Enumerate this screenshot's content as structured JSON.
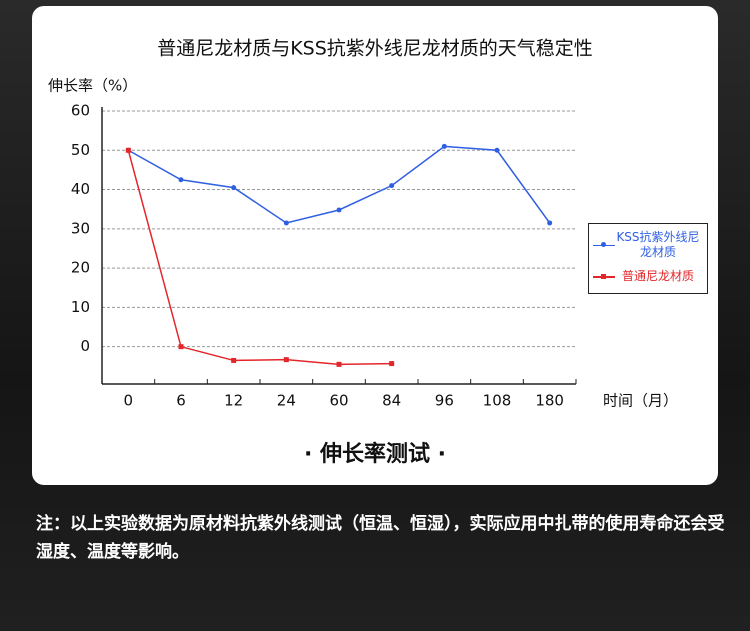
{
  "chart_data": {
    "type": "line",
    "title": "普通尼龙材质与KSS抗紫外线尼龙材质的天气稳定性",
    "y_label": "伸长率（%）",
    "x_label": "时间（月）",
    "caption": "· 伸长率测试 ·",
    "categories": [
      "0",
      "6",
      "12",
      "24",
      "60",
      "84",
      "96",
      "108",
      "180"
    ],
    "series": [
      {
        "name": "KSS抗紫外线尼龙材质",
        "color": "#2f5fe3",
        "marker": "circle",
        "values": [
          50,
          42.5,
          40.5,
          31.5,
          34.8,
          41,
          51,
          50,
          31.5
        ]
      },
      {
        "name": "普通尼龙材质",
        "color": "#e3262a",
        "marker": "square",
        "values": [
          50,
          0,
          -3.5,
          -3.3,
          -4.5,
          -4.3,
          null,
          null,
          null
        ]
      }
    ],
    "ylim": [
      -9.5,
      60
    ],
    "yticks": [
      0,
      10,
      20,
      30,
      40,
      50,
      60
    ],
    "grid": true,
    "legend": "right"
  },
  "note": "注：以上实验数据为原材料抗紫外线测试（恒温、恒湿），实际应用中扎带的使用寿命还会受湿度、温度等影响。"
}
